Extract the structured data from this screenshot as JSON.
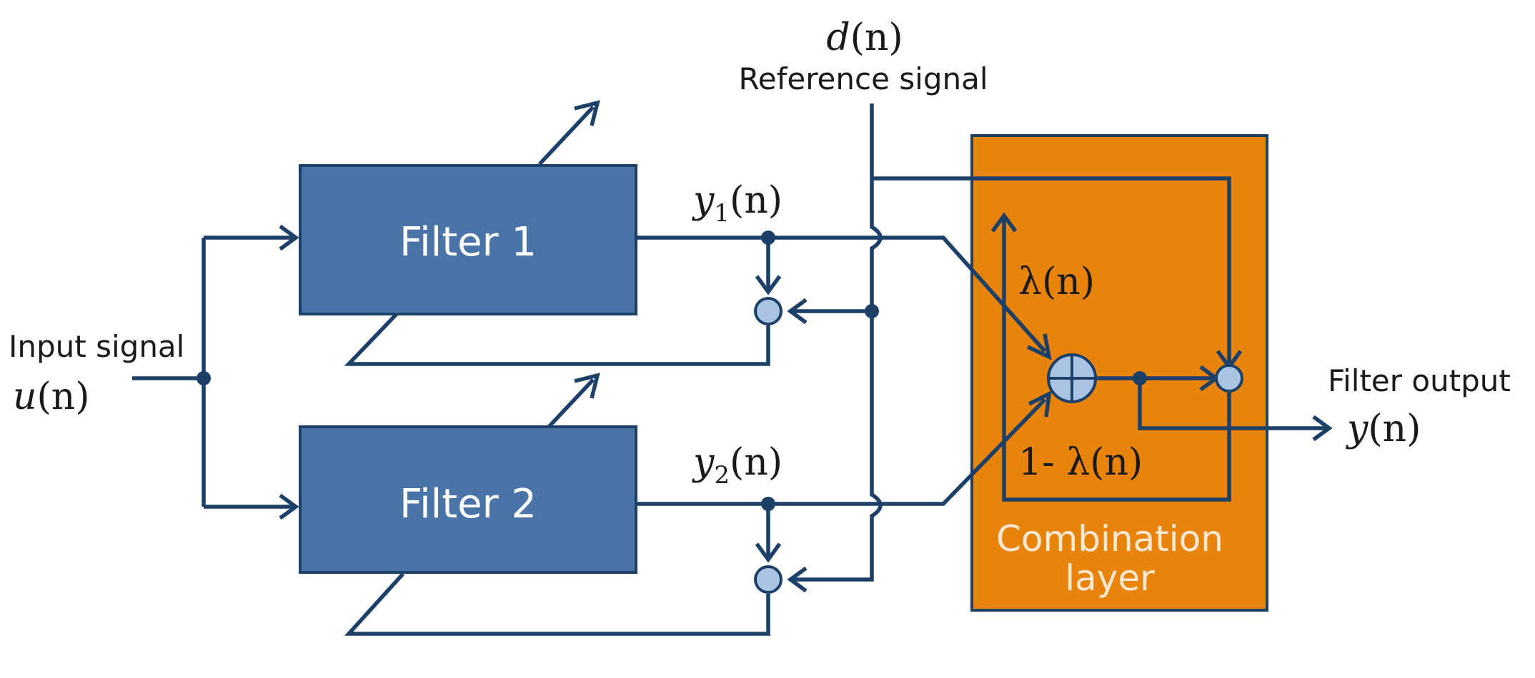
{
  "blocks": {
    "filter1": "Filter 1",
    "filter2": "Filter 2",
    "combination": {
      "line1": "Combination",
      "line2": "layer"
    }
  },
  "input": {
    "label": "Input signal",
    "symbol_var": "u",
    "symbol_arg": "(n)"
  },
  "reference": {
    "label": "Reference signal",
    "symbol_var": "d",
    "symbol_arg": "(n)"
  },
  "output": {
    "label": "Filter output",
    "symbol_var": "y",
    "symbol_arg": "(n)"
  },
  "signals": {
    "y1": {
      "var": "y",
      "sub": "1",
      "arg": "(n)"
    },
    "y2": {
      "var": "y",
      "sub": "2",
      "arg": "(n)"
    },
    "lambda": {
      "sym": "λ",
      "arg": "(n)"
    },
    "one_minus_lambda": {
      "prefix": "1- ",
      "sym": "λ",
      "arg": "(n)"
    }
  },
  "colors": {
    "filter_fill": "#4a74a8",
    "combination_fill": "#e8830b",
    "wire": "#1d4068",
    "summing_node": "#a9c4e3"
  }
}
